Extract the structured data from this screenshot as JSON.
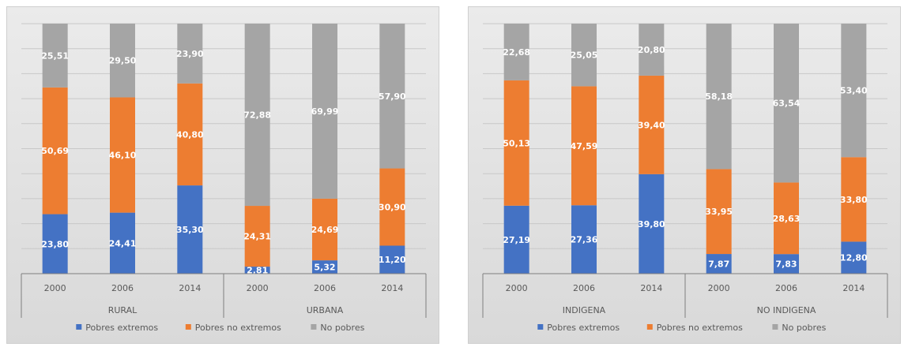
{
  "chart_data": [
    {
      "type": "bar",
      "stacked": true,
      "ylim": [
        0,
        100
      ],
      "grid": true,
      "legend_position": "bottom",
      "groups": [
        {
          "label": "RURAL",
          "categories": [
            "2000",
            "2006",
            "2014"
          ]
        },
        {
          "label": "URBANA",
          "categories": [
            "2000",
            "2006",
            "2014"
          ]
        }
      ],
      "categories": [
        "2000",
        "2006",
        "2014",
        "2000",
        "2006",
        "2014"
      ],
      "series": [
        {
          "name": "Pobres extremos",
          "color": "#4472c4",
          "values": [
            23.8,
            24.41,
            35.3,
            2.81,
            5.32,
            11.2
          ],
          "labels": [
            "23,80",
            "24,41",
            "35,30",
            "2,81",
            "5,32",
            "11,20"
          ]
        },
        {
          "name": "Pobres no extremos",
          "color": "#ed7d31",
          "values": [
            50.69,
            46.1,
            40.8,
            24.31,
            24.69,
            30.9
          ],
          "labels": [
            "50,69",
            "46,10",
            "40,80",
            "24,31",
            "24,69",
            "30,90"
          ]
        },
        {
          "name": "No pobres",
          "color": "#a5a5a5",
          "values": [
            25.51,
            29.5,
            23.9,
            72.88,
            69.99,
            57.9
          ],
          "labels": [
            "25,51",
            "29,50",
            "23,90",
            "72,88",
            "69,99",
            "57,90"
          ]
        }
      ]
    },
    {
      "type": "bar",
      "stacked": true,
      "ylim": [
        0,
        100
      ],
      "grid": true,
      "legend_position": "bottom",
      "groups": [
        {
          "label": "INDIGENA",
          "categories": [
            "2000",
            "2006",
            "2014"
          ]
        },
        {
          "label": "NO INDIGENA",
          "categories": [
            "2000",
            "2006",
            "2014"
          ]
        }
      ],
      "categories": [
        "2000",
        "2006",
        "2014",
        "2000",
        "2006",
        "2014"
      ],
      "series": [
        {
          "name": "Pobres extremos",
          "color": "#4472c4",
          "values": [
            27.19,
            27.36,
            39.8,
            7.87,
            7.83,
            12.8
          ],
          "labels": [
            "27,19",
            "27,36",
            "39,80",
            "7,87",
            "7,83",
            "12,80"
          ]
        },
        {
          "name": "Pobres no extremos",
          "color": "#ed7d31",
          "values": [
            50.13,
            47.59,
            39.4,
            33.95,
            28.63,
            33.8
          ],
          "labels": [
            "50,13",
            "47,59",
            "39,40",
            "33,95",
            "28,63",
            "33,80"
          ]
        },
        {
          "name": "No pobres",
          "color": "#a5a5a5",
          "values": [
            22.68,
            25.05,
            20.8,
            58.18,
            63.54,
            53.4
          ],
          "labels": [
            "22,68",
            "25,05",
            "20,80",
            "58,18",
            "63,54",
            "53,40"
          ]
        }
      ]
    }
  ]
}
